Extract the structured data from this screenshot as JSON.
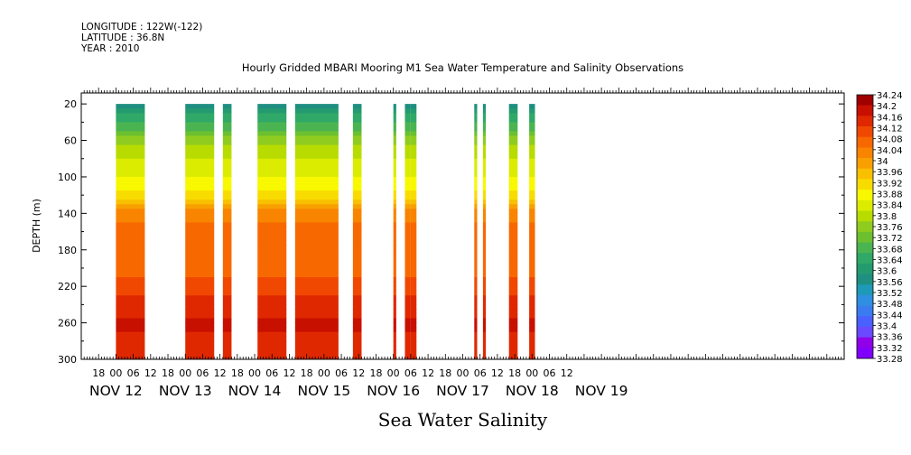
{
  "header": {
    "longitude": "LONGITUDE : 122W(-122)",
    "latitude": "LATITUDE : 36.8N",
    "year": "YEAR : 2010"
  },
  "bottom_label": "Sea Water Salinity",
  "chart_data": {
    "type": "heatmap",
    "title": "Hourly Gridded MBARI Mooring M1 Sea Water Temperature and Salinity Observations",
    "ylabel": "DEPTH (m)",
    "xlabel": "",
    "x_unit": "hours since NOV 12 00",
    "xlim": [
      -12,
      252
    ],
    "ylim": [
      300,
      0
    ],
    "y_ticks": [
      20,
      60,
      100,
      140,
      180,
      220,
      260,
      300
    ],
    "x_hour_tick_labels": [
      "18",
      "00",
      "06",
      "12",
      "18",
      "00",
      "06",
      "12",
      "18",
      "00",
      "06",
      "12",
      "18",
      "00",
      "06",
      "12",
      "18",
      "00",
      "06",
      "12",
      "18",
      "00",
      "06",
      "12",
      "18",
      "00",
      "06",
      "12"
    ],
    "x_day_labels": [
      "NOV 12",
      "NOV 13",
      "NOV 14",
      "NOV 15",
      "NOV 16",
      "NOV 17",
      "NOV 18",
      "NOV 19"
    ],
    "colorbar": {
      "levels": [
        33.28,
        33.32,
        33.36,
        33.4,
        33.44,
        33.48,
        33.52,
        33.56,
        33.6,
        33.64,
        33.68,
        33.72,
        33.76,
        33.8,
        33.84,
        33.88,
        33.92,
        33.96,
        34,
        34.04,
        34.08,
        34.12,
        34.16,
        34.2,
        34.24
      ],
      "labels": [
        "34.24",
        "34.2",
        "34.16",
        "34.12",
        "34.08",
        "34.04",
        "34",
        "33.96",
        "33.92",
        "33.88",
        "33.84",
        "33.8",
        "33.76",
        "33.72",
        "33.68",
        "33.64",
        "33.6",
        "33.56",
        "33.52",
        "33.48",
        "33.44",
        "33.4",
        "33.36",
        "33.32",
        "33.28"
      ],
      "colors": [
        "#8000ff",
        "#9000e8",
        "#6a4aff",
        "#4a60ff",
        "#3a7cf0",
        "#2f8fe0",
        "#1f99b8",
        "#1e8f80",
        "#249a70",
        "#2fa868",
        "#4ab450",
        "#6cc030",
        "#90cc20",
        "#b8dc00",
        "#dcec00",
        "#f8f800",
        "#f8dc00",
        "#f8c000",
        "#f8a000",
        "#f88400",
        "#f86800",
        "#f04800",
        "#e02800",
        "#c81000",
        "#a00000"
      ]
    },
    "depth_levels": [
      20,
      40,
      60,
      80,
      100,
      120,
      140,
      160,
      180,
      200,
      220,
      240,
      260,
      280,
      300
    ],
    "profile_salinity": [
      33.58,
      33.68,
      33.78,
      33.84,
      33.88,
      33.94,
      34.06,
      34.1,
      34.08,
      34.1,
      34.14,
      34.18,
      34.21,
      34.19,
      34.16
    ],
    "blocks": [
      {
        "start": 0,
        "end": 10,
        "top_depth": 20
      },
      {
        "start": 24,
        "end": 34,
        "top_depth": 20
      },
      {
        "start": 37,
        "end": 40,
        "top_depth": 20
      },
      {
        "start": 49,
        "end": 59,
        "top_depth": 20
      },
      {
        "start": 62,
        "end": 77,
        "top_depth": 20
      },
      {
        "start": 82,
        "end": 85,
        "top_depth": 20
      },
      {
        "start": 96,
        "end": 97,
        "top_depth": 20
      },
      {
        "start": 100,
        "end": 102,
        "top_depth": 20
      },
      {
        "start": 102,
        "end": 104,
        "top_depth": 20
      },
      {
        "start": 124,
        "end": 125,
        "top_depth": 20
      },
      {
        "start": 127,
        "end": 128,
        "top_depth": 20
      },
      {
        "start": 136,
        "end": 139,
        "top_depth": 20
      },
      {
        "start": 143,
        "end": 145,
        "top_depth": 20
      }
    ]
  }
}
